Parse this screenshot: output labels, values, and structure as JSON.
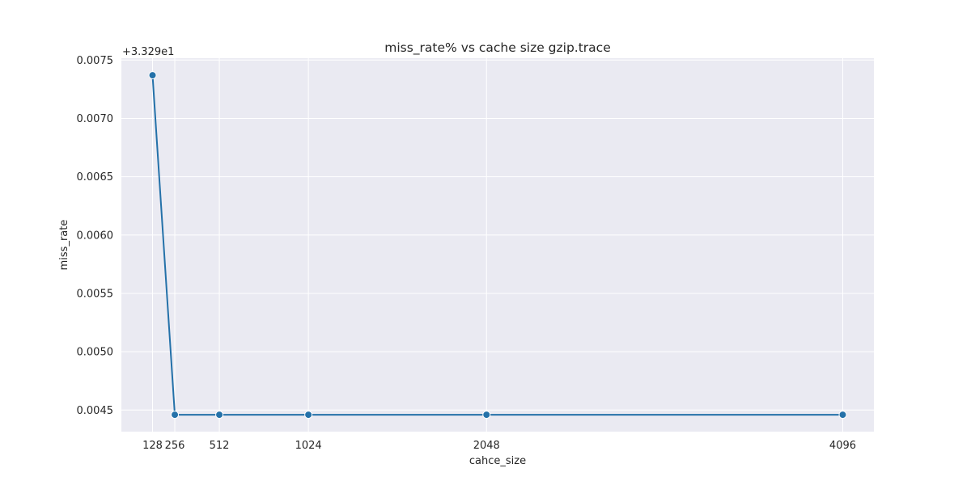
{
  "chart_data": {
    "type": "line",
    "title": "miss_rate% vs cache size gzip.trace",
    "xlabel": "cahce_size",
    "ylabel": "miss_rate",
    "y_offset_label": "+3.329e1",
    "x": [
      128,
      256,
      512,
      1024,
      2048,
      4096
    ],
    "x_tick_labels": [
      "128",
      "256",
      "512",
      "1024",
      "2048",
      "4096"
    ],
    "series": [
      {
        "values": [
          0.00737,
          0.00446,
          0.00446,
          0.00446,
          0.00446,
          0.00446
        ]
      }
    ],
    "y_ticks": [
      0.0045,
      0.005,
      0.0055,
      0.006,
      0.0065,
      0.007,
      0.0075
    ],
    "y_tick_labels": [
      "0.0045",
      "0.0050",
      "0.0055",
      "0.0060",
      "0.0065",
      "0.0070",
      "0.0075"
    ],
    "xlim": [
      -51.2,
      4275.2
    ],
    "ylim": [
      0.004315,
      0.007516
    ],
    "grid": true,
    "line_color": "#2471a9",
    "background_color": "#eaeaf2",
    "grid_color": "#ffffff"
  }
}
